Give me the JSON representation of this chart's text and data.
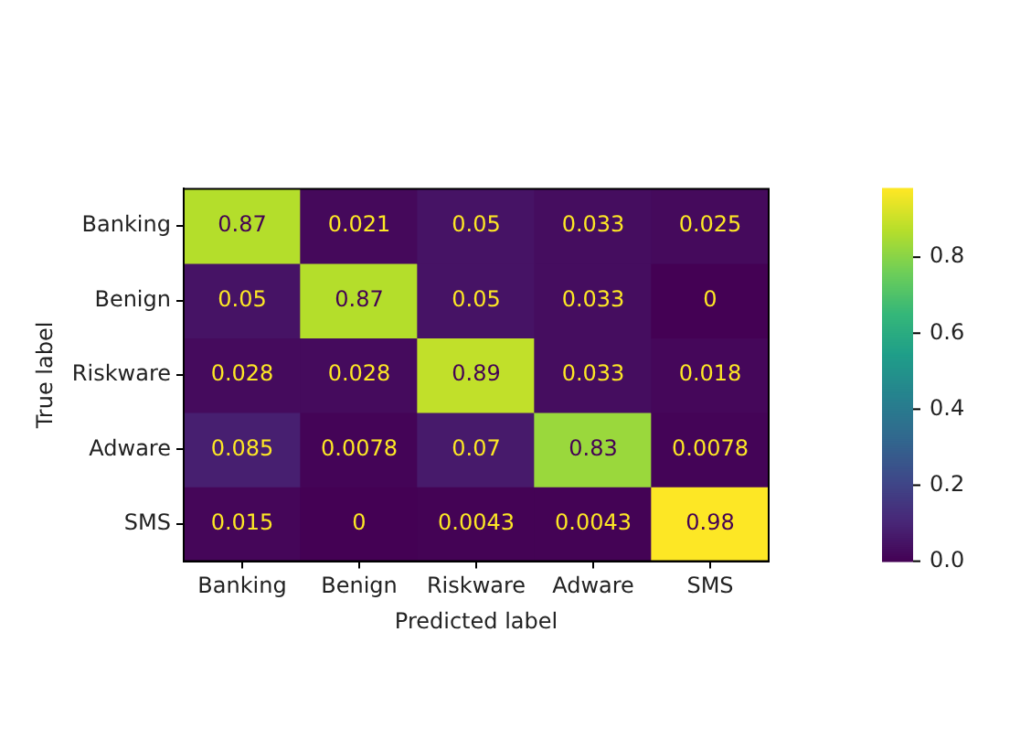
{
  "chart_data": {
    "type": "heatmap",
    "categories": [
      "Banking",
      "Benign",
      "Riskware",
      "Adware",
      "SMS"
    ],
    "y_categories": [
      "Banking",
      "Benign",
      "Riskware",
      "Adware",
      "SMS"
    ],
    "cells": [
      [
        0.87,
        0.021,
        0.05,
        0.033,
        0.025
      ],
      [
        0.05,
        0.87,
        0.05,
        0.033,
        0
      ],
      [
        0.028,
        0.028,
        0.89,
        0.033,
        0.018
      ],
      [
        0.085,
        0.0078,
        0.07,
        0.83,
        0.0078
      ],
      [
        0.015,
        0,
        0.0043,
        0.0043,
        0.98
      ]
    ],
    "data_labels": true,
    "xlabel": "Predicted label",
    "ylabel": "True label",
    "clim": [
      0,
      0.98
    ],
    "cticks": [
      {
        "value": 0,
        "label": "0.0"
      },
      0.2,
      0.4,
      0.6,
      0.8
    ]
  }
}
